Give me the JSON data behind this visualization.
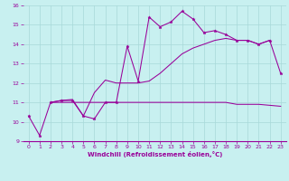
{
  "xlabel": "Windchill (Refroidissement éolien,°C)",
  "bg_color": "#c8f0f0",
  "grid_color": "#a8d8d8",
  "line_color": "#990099",
  "xlim": [
    -0.5,
    23.5
  ],
  "ylim": [
    9,
    16
  ],
  "xticks": [
    0,
    1,
    2,
    3,
    4,
    5,
    6,
    7,
    8,
    9,
    10,
    11,
    12,
    13,
    14,
    15,
    16,
    17,
    18,
    19,
    20,
    21,
    22,
    23
  ],
  "yticks": [
    9,
    10,
    11,
    12,
    13,
    14,
    15,
    16
  ],
  "line1_x": [
    0,
    1,
    2,
    3,
    4,
    5,
    6,
    7,
    8,
    9,
    10,
    11,
    12,
    13,
    14,
    15,
    16,
    17,
    18,
    19,
    20,
    21,
    22,
    23
  ],
  "line1_y": [
    10.3,
    9.3,
    11.0,
    11.1,
    11.1,
    10.3,
    10.15,
    11.0,
    11.0,
    13.9,
    12.1,
    15.4,
    14.9,
    15.15,
    15.7,
    15.3,
    14.6,
    14.7,
    14.5,
    14.2,
    14.2,
    14.0,
    14.2,
    12.5
  ],
  "line2_x": [
    2,
    3,
    4,
    5,
    6,
    7,
    8,
    9,
    10,
    11,
    12,
    13,
    14,
    15,
    16,
    17,
    18,
    19,
    20,
    21,
    22
  ],
  "line2_y": [
    11.0,
    11.1,
    11.15,
    10.3,
    11.5,
    12.15,
    12.0,
    12.0,
    12.0,
    12.1,
    12.5,
    13.0,
    13.5,
    13.8,
    14.0,
    14.2,
    14.3,
    14.2,
    14.2,
    14.0,
    14.2
  ],
  "line3_x": [
    2,
    3,
    4,
    5,
    6,
    7,
    8,
    9,
    10,
    11,
    12,
    13,
    14,
    15,
    16,
    17,
    18,
    19,
    20,
    21,
    22,
    23
  ],
  "line3_y": [
    11.0,
    11.0,
    11.0,
    11.0,
    11.0,
    11.0,
    11.0,
    11.0,
    11.0,
    11.0,
    11.0,
    11.0,
    11.0,
    11.0,
    11.0,
    11.0,
    11.0,
    10.9,
    10.9,
    10.9,
    10.85,
    10.8
  ]
}
